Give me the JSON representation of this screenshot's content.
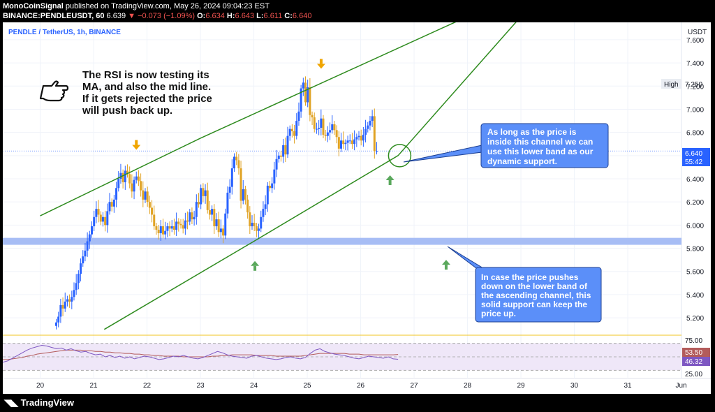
{
  "header": {
    "publisher": "MonoCoinSignal",
    "published_text": "published on TradingView.com, May 26, 2024 09:04:23 EST",
    "symbol": "BINANCE:PENDLEUSDT, 60",
    "last": "6.639",
    "change": "−0.073 (−1.09%)",
    "o_label": "O:",
    "o": "6.634",
    "h_label": "H:",
    "h": "6.643",
    "l_label": "L:",
    "l": "6.611",
    "c_label": "C:",
    "c": "6.640"
  },
  "chart_label": "PENDLE / TetherUS, 1h, BINANCE",
  "footer": {
    "logo": "TradingView"
  },
  "colors": {
    "up": "#2962ff",
    "down": "#e0a325",
    "channel": "#2e8b1e",
    "support_band": "#a7bdf5",
    "callout_bg": "#5b8ff9",
    "callout_border": "#1c3f91",
    "rsi_line": "#7e57c2",
    "rsi_ma": "#b35b5b",
    "arrow_down": "#f0a500",
    "arrow_up": "#5aa85c"
  },
  "annotations": {
    "main_text": [
      "The RSI is now testing its",
      "MA, and also the mid line.",
      "If it gets rejected the price",
      "will push back up."
    ],
    "pointer_icon": "pointing-hand-icon",
    "callout_upper": [
      "As long as the price is",
      "inside this channel we can",
      "use this lower band as our",
      "dynamic support."
    ],
    "callout_lower": [
      "In case the price pushes",
      "down on the lower band of",
      "the ascending channel, this",
      "solid support can keep the",
      "price up."
    ]
  },
  "chart_data": {
    "type": "candlestick",
    "title": "PENDLE / TetherUS, 1h, BINANCE",
    "y_axis_unit": "USDT",
    "ylim": [
      5.05,
      7.75
    ],
    "y_ticks": [
      "7.600",
      "7.400",
      "7.200",
      "7.000",
      "6.800",
      "6.600",
      "6.400",
      "6.200",
      "6.000",
      "5.800",
      "5.600",
      "5.400",
      "5.200"
    ],
    "x_ticks": [
      "20",
      "21",
      "22",
      "23",
      "24",
      "25",
      "26",
      "27",
      "28",
      "29",
      "30",
      "31",
      "Jun"
    ],
    "x_tick_days": [
      20,
      21,
      22,
      23,
      24,
      25,
      26,
      27,
      28,
      29,
      30,
      31,
      32
    ],
    "high_label": {
      "text": "High",
      "value": "7.250"
    },
    "last_price_label": {
      "value": "6.640",
      "countdown": "55:42"
    },
    "series_close_hourly": [
      5.16,
      5.21,
      5.31,
      5.28,
      5.34,
      5.36,
      5.34,
      5.38,
      5.44,
      5.5,
      5.58,
      5.67,
      5.73,
      5.78,
      5.86,
      5.92,
      5.99,
      6.07,
      6.14,
      6.09,
      6.03,
      6.07,
      6.0,
      6.12,
      6.2,
      6.16,
      6.22,
      6.32,
      6.4,
      6.45,
      6.37,
      6.47,
      6.44,
      6.36,
      6.29,
      6.39,
      6.42,
      6.38,
      6.3,
      6.22,
      6.29,
      6.2,
      6.15,
      6.09,
      5.99,
      5.96,
      5.93,
      5.99,
      5.92,
      5.95,
      5.99,
      5.97,
      5.99,
      5.96,
      6.03,
      6.01,
      6.0,
      5.97,
      6.04,
      6.03,
      6.11,
      6.05,
      6.07,
      6.2,
      6.18,
      6.32,
      6.25,
      6.3,
      6.13,
      6.09,
      6.14,
      5.99,
      6.05,
      5.94,
      5.97,
      5.91,
      6.1,
      6.28,
      6.33,
      6.49,
      6.59,
      6.56,
      6.49,
      6.21,
      6.31,
      6.22,
      6.11,
      5.99,
      6.02,
      5.99,
      5.95,
      5.97,
      6.07,
      6.14,
      6.18,
      6.34,
      6.32,
      6.36,
      6.48,
      6.57,
      6.6,
      6.59,
      6.69,
      6.61,
      6.77,
      6.83,
      6.81,
      6.77,
      6.9,
      6.98,
      7.18,
      7.23,
      7.06,
      7.19,
      6.95,
      6.93,
      6.83,
      6.83,
      6.84,
      6.92,
      6.78,
      6.77,
      6.8,
      6.82,
      6.87,
      6.82,
      6.76,
      6.66,
      6.73,
      6.7,
      6.71,
      6.73,
      6.73,
      6.7,
      6.74,
      6.76,
      6.77,
      6.73,
      6.78,
      6.83,
      6.86,
      6.9,
      6.94,
      6.64,
      6.64
    ],
    "series_open_hourly_start": 5.13,
    "support_zone": [
      5.83,
      5.89
    ],
    "channel_lines": [
      {
        "name": "upper",
        "points": [
          [
            20.0,
            6.08
          ],
          [
            23.0,
            6.75
          ],
          [
            28.0,
            7.8
          ]
        ]
      },
      {
        "name": "lower",
        "points": [
          [
            21.2,
            5.1
          ],
          [
            24.0,
            5.86
          ],
          [
            26.7,
            6.6
          ],
          [
            29.0,
            7.8
          ]
        ]
      }
    ],
    "markers_down": [
      {
        "day": 21.8,
        "price": 6.68
      },
      {
        "day": 25.26,
        "price": 7.38
      }
    ],
    "markers_up": [
      {
        "day": 24.02,
        "price": 5.66
      },
      {
        "day": 26.55,
        "price": 6.4
      },
      {
        "day": 27.6,
        "price": 5.67
      }
    ],
    "circle_marker": {
      "day": 26.73,
      "price": 6.6
    },
    "rsi": {
      "ylim": [
        20,
        80
      ],
      "ticks": [
        "75.00",
        "25.00"
      ],
      "tick_values": [
        75,
        25
      ],
      "bands": [
        70,
        50,
        30
      ],
      "rsi_label": "46.32",
      "ma_label": "53.50",
      "rsi_values": [
        42,
        44,
        48,
        52,
        56,
        60,
        63,
        65,
        67,
        66,
        64,
        62,
        63,
        60,
        62,
        59,
        57,
        58,
        55,
        53,
        54,
        50,
        52,
        49,
        51,
        48,
        50,
        47,
        49,
        51,
        50,
        48,
        46,
        47,
        49,
        51,
        50,
        52,
        50,
        48,
        47,
        49,
        52,
        55,
        58,
        56,
        53,
        51,
        50,
        49,
        48,
        51,
        52,
        50,
        48,
        47,
        46,
        47,
        49,
        50,
        48,
        47,
        49,
        55,
        60,
        62,
        58,
        56,
        54,
        53,
        52,
        50,
        48,
        47,
        49,
        51,
        50,
        49,
        48,
        50,
        47,
        46.32
      ],
      "ma_values": [
        46,
        46,
        47,
        48,
        49,
        51,
        52,
        54,
        55,
        56,
        57,
        58,
        59,
        60,
        60,
        60,
        60,
        59,
        59,
        58,
        58,
        57,
        57,
        56,
        56,
        55,
        55,
        54,
        54,
        53,
        53,
        52,
        52,
        51,
        51,
        51,
        51,
        50,
        50,
        50,
        50,
        50,
        50,
        51,
        51,
        52,
        52,
        53,
        53,
        53,
        53,
        53,
        52,
        52,
        52,
        52,
        51,
        51,
        51,
        51,
        51,
        51,
        52,
        53,
        54,
        55,
        55,
        55,
        55,
        55,
        55,
        54,
        54,
        54,
        53,
        53,
        53,
        53,
        53,
        53,
        53,
        53.5
      ]
    }
  }
}
